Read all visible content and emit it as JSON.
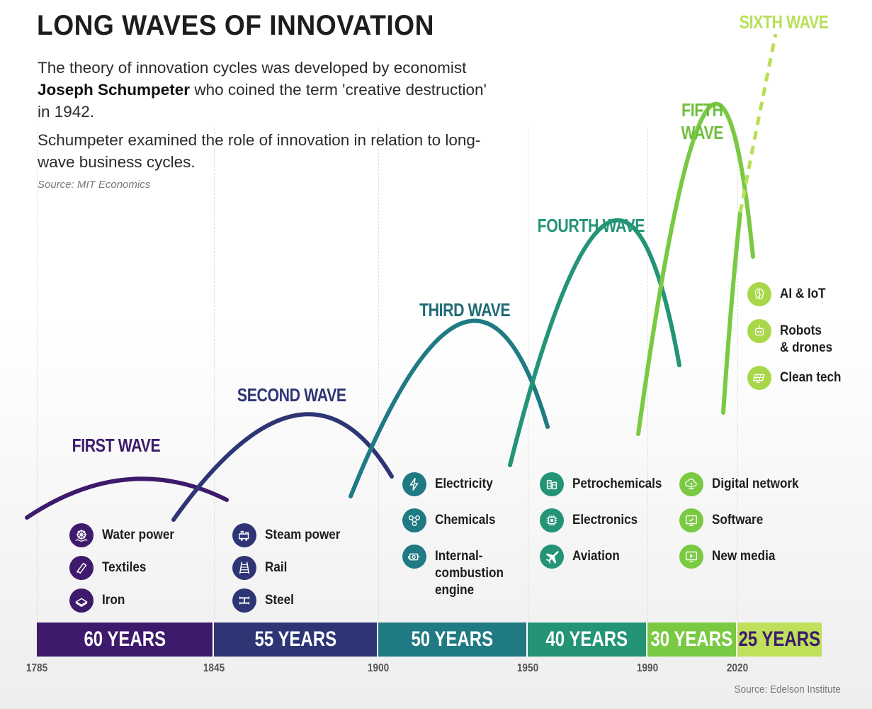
{
  "title": "LONG WAVES OF INNOVATION",
  "intro": {
    "line1_pre": "The theory of innovation cycles was developed by economist ",
    "line1_bold": "Joseph Schumpeter",
    "line1_post": " who coined the term 'creative destruction' in 1942.",
    "line2": "Schumpeter examined the role of innovation in relation to long-wave business cycles."
  },
  "source_top": "Source: MIT Economics",
  "source_bottom": "Source: Edelson Institute",
  "colors": {
    "wave1": "#3d1a6b",
    "wave2": "#2e3575",
    "wave3": "#1f7a83",
    "wave4": "#249477",
    "wave5": "#7ac943",
    "wave6": "#bfe05a"
  },
  "waves": [
    {
      "label": "FIRST WAVE",
      "duration": "60 YEARS",
      "items": [
        {
          "label": "Water power",
          "icon": "water-wheel-icon"
        },
        {
          "label": "Textiles",
          "icon": "fabric-roll-icon"
        },
        {
          "label": "Iron",
          "icon": "iron-ingot-icon"
        }
      ]
    },
    {
      "label": "SECOND WAVE",
      "duration": "55 YEARS",
      "items": [
        {
          "label": "Steam power",
          "icon": "steam-engine-icon"
        },
        {
          "label": "Rail",
          "icon": "rail-track-icon"
        },
        {
          "label": "Steel",
          "icon": "steel-beam-icon"
        }
      ]
    },
    {
      "label": "THIRD WAVE",
      "duration": "50 YEARS",
      "items": [
        {
          "label": "Electricity",
          "icon": "lightning-bolt-icon"
        },
        {
          "label": "Chemicals",
          "icon": "molecule-icon"
        },
        {
          "label": "Internal-\ncombustion\nengine",
          "icon": "engine-icon"
        }
      ]
    },
    {
      "label": "FOURTH WAVE",
      "duration": "40 YEARS",
      "items": [
        {
          "label": "Petrochemicals",
          "icon": "oil-barrel-icon"
        },
        {
          "label": "Electronics",
          "icon": "microchip-icon"
        },
        {
          "label": "Aviation",
          "icon": "airplane-icon"
        }
      ]
    },
    {
      "label": "FIFTH\nWAVE",
      "duration": "30 YEARS",
      "items": [
        {
          "label": "Digital network",
          "icon": "cloud-network-icon"
        },
        {
          "label": "Software",
          "icon": "software-window-icon"
        },
        {
          "label": "New media",
          "icon": "media-play-icon"
        }
      ]
    },
    {
      "label": "SIXTH WAVE",
      "duration": "25 YEARS",
      "items": [
        {
          "label": "AI & IoT",
          "icon": "brain-circuit-icon"
        },
        {
          "label": "Robots\n& drones",
          "icon": "robot-icon"
        },
        {
          "label": "Clean tech",
          "icon": "solar-panel-icon"
        }
      ]
    }
  ],
  "years": [
    "1785",
    "1845",
    "1900",
    "1950",
    "1990",
    "2020"
  ]
}
